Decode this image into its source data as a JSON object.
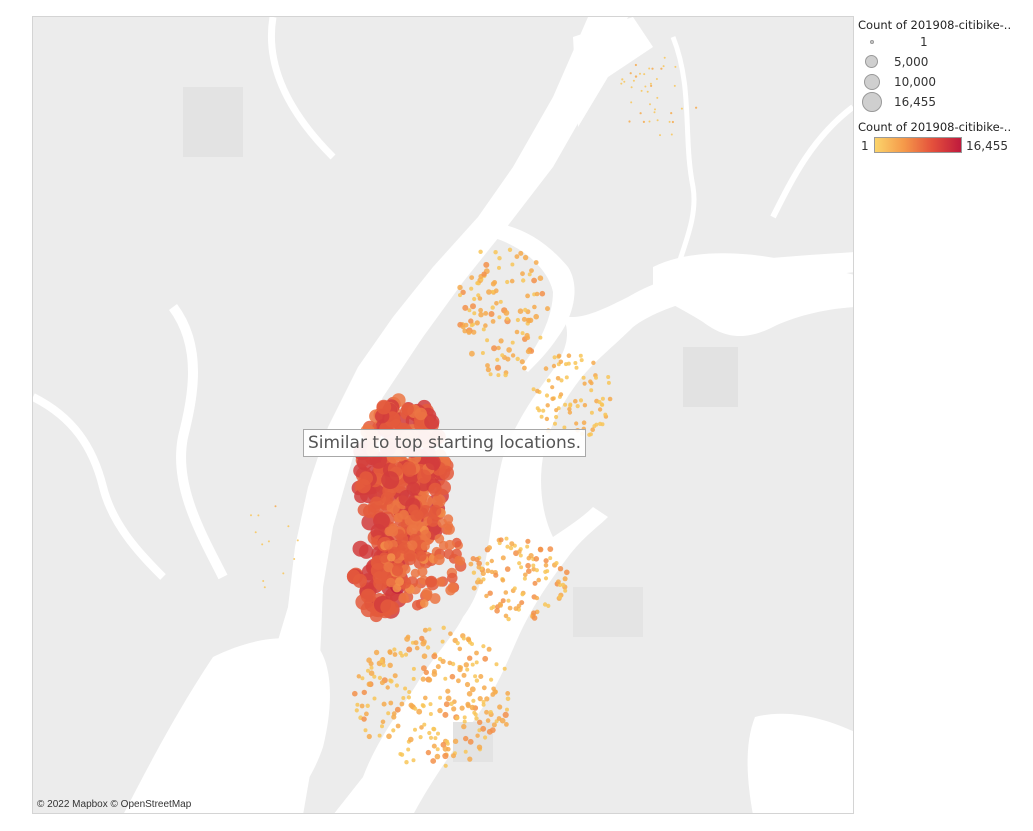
{
  "map": {
    "annotation": "Similar to top starting locations.",
    "attribution": "© 2022 Mapbox © OpenStreetMap"
  },
  "legend": {
    "size_title": "Count of 201908-citibike-..",
    "size_entries": [
      {
        "label": "1",
        "value": 1
      },
      {
        "label": "5,000",
        "value": 5000
      },
      {
        "label": "10,000",
        "value": 10000
      },
      {
        "label": "16,455",
        "value": 16455
      }
    ],
    "color_title": "Count of 201908-citibike-..",
    "color_min": "1",
    "color_max": "16,455",
    "color_scale": [
      "#fbd46b",
      "#f59a4a",
      "#e4503c",
      "#bf1a3d"
    ]
  }
}
